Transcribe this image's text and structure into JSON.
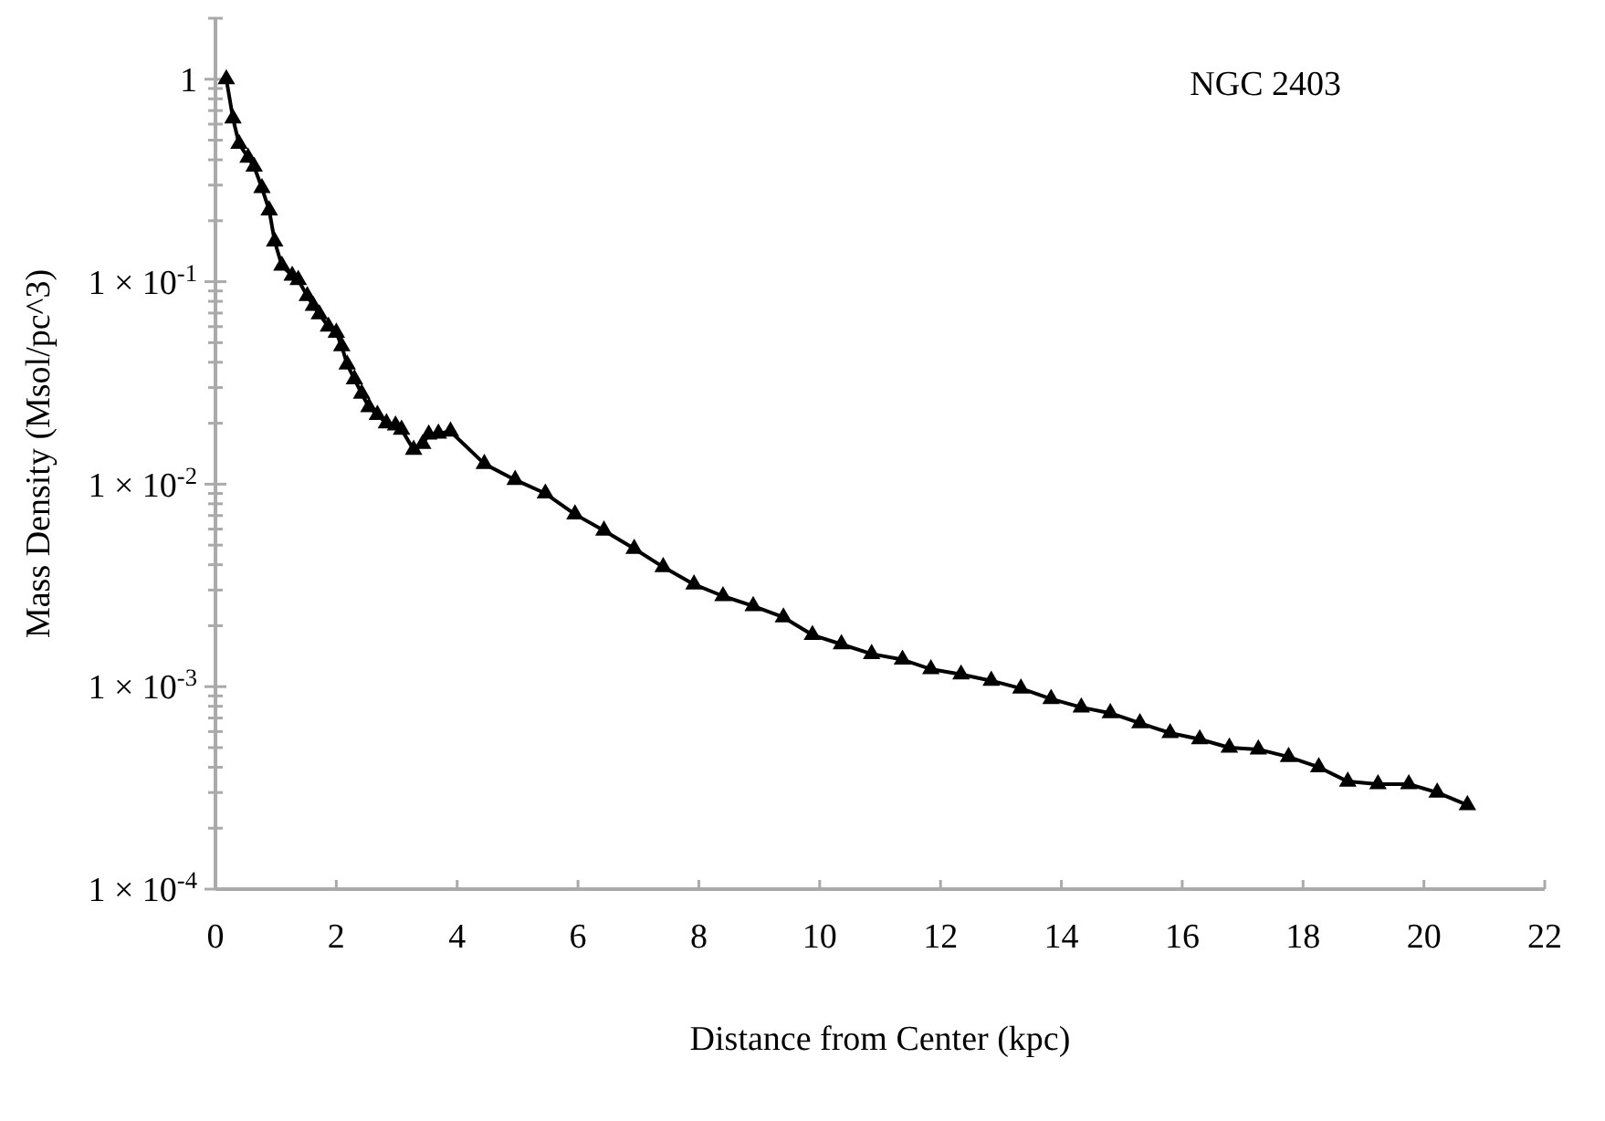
{
  "chart_data": {
    "type": "line",
    "title": "NGC 2403",
    "xlabel": "Distance from Center (kpc)",
    "ylabel": "Mass Density (Msol/pc^3)",
    "log": "y",
    "grid": false,
    "marker": "triangle",
    "line_style": "solid",
    "xlim": [
      0,
      22
    ],
    "xticks": [
      0,
      2,
      4,
      6,
      8,
      10,
      12,
      14,
      16,
      18,
      20,
      22
    ],
    "ylim": [
      0.0001,
      2
    ],
    "yticks": [
      {
        "value": 0.0001,
        "label": "1 × 10$^{-4}$"
      },
      {
        "value": 0.0002,
        "label": null
      },
      {
        "value": 0.0003,
        "label": null
      },
      {
        "value": 0.0004,
        "label": null
      },
      {
        "value": 0.0005,
        "label": null
      },
      {
        "value": 0.0006,
        "label": null
      },
      {
        "value": 0.0007,
        "label": null
      },
      {
        "value": 0.0008,
        "label": null
      },
      {
        "value": 0.0009,
        "label": null
      },
      {
        "value": 0.001,
        "label": "1 × 10$^{-3}$"
      },
      {
        "value": 0.002,
        "label": null
      },
      {
        "value": 0.003,
        "label": null
      },
      {
        "value": 0.004,
        "label": null
      },
      {
        "value": 0.005,
        "label": null
      },
      {
        "value": 0.006,
        "label": null
      },
      {
        "value": 0.007,
        "label": null
      },
      {
        "value": 0.008,
        "label": null
      },
      {
        "value": 0.009,
        "label": null
      },
      {
        "value": 0.01,
        "label": "1 × 10$^{-2}$"
      },
      {
        "value": 0.02,
        "label": null
      },
      {
        "value": 0.03,
        "label": null
      },
      {
        "value": 0.04,
        "label": null
      },
      {
        "value": 0.05,
        "label": null
      },
      {
        "value": 0.06,
        "label": null
      },
      {
        "value": 0.07,
        "label": null
      },
      {
        "value": 0.08,
        "label": null
      },
      {
        "value": 0.09,
        "label": null
      },
      {
        "value": 0.1,
        "label": "1 × 10$^{-1}$"
      },
      {
        "value": 0.2,
        "label": null
      },
      {
        "value": 0.3,
        "label": null
      },
      {
        "value": 0.4,
        "label": null
      },
      {
        "value": 0.5,
        "label": null
      },
      {
        "value": 0.6,
        "label": null
      },
      {
        "value": 0.7,
        "label": null
      },
      {
        "value": 0.8,
        "label": null
      },
      {
        "value": 0.9,
        "label": null
      },
      {
        "value": 1,
        "label": "1"
      },
      {
        "value": 2,
        "label": null
      }
    ],
    "series": [
      {
        "color": "#000000",
        "x": [
          0.18,
          0.29,
          0.39,
          0.54,
          0.64,
          0.77,
          0.89,
          0.98,
          1.1,
          1.27,
          1.37,
          1.52,
          1.62,
          1.72,
          1.87,
          2.0,
          2.09,
          2.18,
          2.3,
          2.42,
          2.54,
          2.68,
          2.83,
          2.98,
          3.08,
          3.28,
          3.43,
          3.53,
          3.69,
          3.89,
          4.45,
          4.96,
          5.46,
          5.95,
          6.43,
          6.93,
          7.41,
          7.92,
          8.4,
          8.9,
          9.4,
          9.88,
          10.36,
          10.86,
          11.37,
          11.84,
          12.34,
          12.84,
          13.33,
          13.83,
          14.33,
          14.81,
          15.3,
          15.8,
          16.29,
          16.78,
          17.26,
          17.76,
          18.26,
          18.74,
          19.24,
          19.75,
          20.22,
          20.72
        ],
        "values": [
          1.0,
          0.64,
          0.48,
          0.41,
          0.37,
          0.29,
          0.225,
          0.158,
          0.12,
          0.107,
          0.102,
          0.085,
          0.076,
          0.069,
          0.06,
          0.056,
          0.048,
          0.039,
          0.033,
          0.028,
          0.024,
          0.022,
          0.02,
          0.0195,
          0.0186,
          0.0148,
          0.0158,
          0.0176,
          0.0178,
          0.0182,
          0.0126,
          0.0105,
          0.009,
          0.0071,
          0.0059,
          0.0048,
          0.0039,
          0.0032,
          0.0028,
          0.0025,
          0.0022,
          0.0018,
          0.00162,
          0.00145,
          0.00136,
          0.00122,
          0.00115,
          0.00107,
          0.00098,
          0.00087,
          0.00079,
          0.00074,
          0.00066,
          0.00059,
          0.00055,
          0.0005,
          0.00049,
          0.00045,
          0.0004,
          0.00034,
          0.00033,
          0.00033,
          0.0003,
          0.00026
        ]
      }
    ]
  }
}
